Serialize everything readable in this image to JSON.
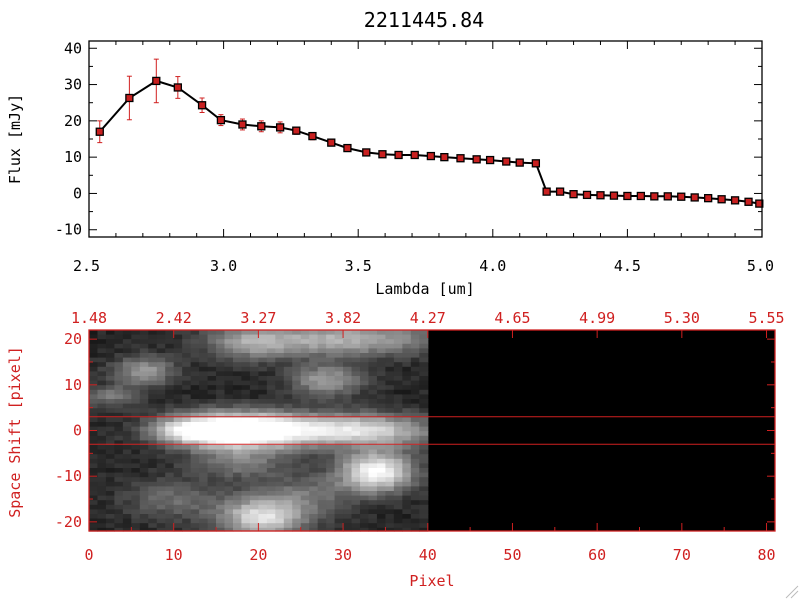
{
  "colors": {
    "axes": "#000000",
    "accent_red": "#d02020",
    "marker": "#c82020",
    "line": "#000000",
    "image_bg": "#000000"
  },
  "chart_data": [
    {
      "type": "line",
      "title": "2211445.84",
      "xlabel": "Lambda [um]",
      "ylabel": "Flux [mJy]",
      "xlim": [
        2.5,
        5.0
      ],
      "ylim": [
        -12,
        42
      ],
      "xticks": [
        "2.5",
        "3.0",
        "3.5",
        "4.0",
        "4.5",
        "5.0"
      ],
      "yticks": [
        "-10",
        "0",
        "10",
        "20",
        "30",
        "40"
      ],
      "grid": false,
      "legend": "none",
      "series": [
        {
          "x": [
            2.54,
            2.65,
            2.75,
            2.83,
            2.92,
            2.99,
            3.07,
            3.14,
            3.21,
            3.27,
            3.33,
            3.4,
            3.46,
            3.53,
            3.59,
            3.65,
            3.71,
            3.77,
            3.82,
            3.88,
            3.94,
            3.99,
            4.05,
            4.1,
            4.16,
            4.2,
            4.25,
            4.3,
            4.35,
            4.4,
            4.45,
            4.5,
            4.55,
            4.6,
            4.65,
            4.7,
            4.75,
            4.8,
            4.85,
            4.9,
            4.95,
            4.99
          ],
          "y": [
            17.0,
            26.3,
            31.0,
            29.2,
            24.3,
            20.2,
            19.0,
            18.5,
            18.2,
            17.3,
            15.8,
            14.0,
            12.5,
            11.3,
            10.8,
            10.6,
            10.6,
            10.3,
            10.0,
            9.7,
            9.4,
            9.2,
            8.8,
            8.5,
            8.3,
            0.5,
            0.5,
            -0.2,
            -0.4,
            -0.5,
            -0.6,
            -0.7,
            -0.7,
            -0.8,
            -0.8,
            -0.9,
            -1.1,
            -1.3,
            -1.6,
            -1.9,
            -2.3,
            -2.8
          ],
          "yerr": [
            3.0,
            6.0,
            6.0,
            3.0,
            2.0,
            1.5,
            1.5,
            1.5,
            1.5,
            1.0,
            1.0,
            0.8,
            0.8,
            0.6,
            0.6,
            0.6,
            0.6,
            0.6,
            0.6,
            0.6,
            0.6,
            0.6,
            0.6,
            0.6,
            0.6,
            0.5,
            0.5,
            0.5,
            0.5,
            0.5,
            0.5,
            0.5,
            0.5,
            0.5,
            0.5,
            0.5,
            0.5,
            0.5,
            0.5,
            0.5,
            0.5,
            0.5
          ]
        }
      ]
    },
    {
      "type": "heatmap",
      "xlabel": "Pixel",
      "ylabel": "Space Shift [pixel]",
      "xlim": [
        0,
        81
      ],
      "ylim": [
        -22,
        22
      ],
      "xticks": [
        "0",
        "10",
        "20",
        "30",
        "40",
        "50",
        "60",
        "70",
        "80"
      ],
      "yticks": [
        "-20",
        "-10",
        "0",
        "10",
        "20"
      ],
      "top_ticks": [
        "1.48",
        "2.42",
        "3.27",
        "3.82",
        "4.27",
        "4.65",
        "4.99",
        "5.30",
        "5.55"
      ],
      "horizontal_lines": [
        3,
        -3
      ],
      "data_columns": [
        0,
        40
      ],
      "blobs": [
        {
          "x": 16.5,
          "y": 0.0,
          "sx": 5.0,
          "sy": 2.6,
          "amp": 1.0
        },
        {
          "x": 11.0,
          "y": 0.0,
          "sx": 2.5,
          "sy": 1.8,
          "amp": 0.35
        },
        {
          "x": 24.0,
          "y": 0.0,
          "sx": 7.0,
          "sy": 2.6,
          "amp": 0.6
        },
        {
          "x": 34.0,
          "y": 0.0,
          "sx": 5.0,
          "sy": 2.4,
          "amp": 0.5
        },
        {
          "x": 34.0,
          "y": -9.0,
          "sx": 3.0,
          "sy": 3.0,
          "amp": 0.9
        },
        {
          "x": 20.5,
          "y": -19.0,
          "sx": 3.5,
          "sy": 3.0,
          "amp": 0.75
        },
        {
          "x": 6.5,
          "y": 13.0,
          "sx": 2.5,
          "sy": 2.2,
          "amp": 0.45
        },
        {
          "x": 28.0,
          "y": 11.0,
          "sx": 3.0,
          "sy": 2.5,
          "amp": 0.45
        },
        {
          "x": 30.0,
          "y": 20.0,
          "sx": 8.0,
          "sy": 2.5,
          "amp": 0.55
        },
        {
          "x": 19.0,
          "y": 19.0,
          "sx": 3.5,
          "sy": 2.5,
          "amp": 0.35
        },
        {
          "x": 2.5,
          "y": 7.5,
          "sx": 2.5,
          "sy": 1.5,
          "amp": 0.3
        },
        {
          "x": 18.0,
          "y": -7.0,
          "sx": 4.0,
          "sy": 2.5,
          "amp": 0.3
        },
        {
          "x": 10.0,
          "y": -15.0,
          "sx": 4.0,
          "sy": 3.0,
          "amp": 0.25
        },
        {
          "x": 26.0,
          "y": -14.0,
          "sx": 4.0,
          "sy": 3.0,
          "amp": 0.25
        }
      ]
    }
  ]
}
